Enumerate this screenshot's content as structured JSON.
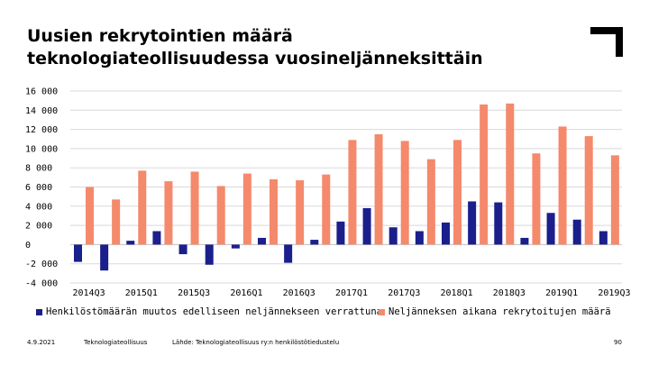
{
  "slide": {
    "title_line1": "Uusien rekrytointien määrä",
    "title_line2": "teknologiateollisuudessa vuosineljänneksittäin"
  },
  "colors": {
    "series1": "#1a1f8c",
    "series2": "#f5896b",
    "grid": "#d9d9d9"
  },
  "footer": {
    "date": "4.9.2021",
    "org": "Teknologiateollisuus",
    "source": "Lähde: Teknologiateollisuus ry:n henkilöstötiedustelu",
    "page": "90"
  },
  "chart_data": {
    "type": "bar",
    "title": "",
    "xlabel": "",
    "ylabel": "",
    "ylim": [
      -4000,
      16000
    ],
    "yticks": [
      -4000,
      -2000,
      0,
      2000,
      4000,
      6000,
      8000,
      10000,
      12000,
      14000,
      16000
    ],
    "ytick_labels": [
      "-4 000",
      "-2 000",
      "0",
      "2 000",
      "4 000",
      "6 000",
      "8 000",
      "10 000",
      "12 000",
      "14 000",
      "16 000"
    ],
    "grid": true,
    "legend": "bottom",
    "categories": [
      "2014Q3",
      "2014Q4",
      "2015Q1",
      "2015Q2",
      "2015Q3",
      "2015Q4",
      "2016Q1",
      "2016Q2",
      "2016Q3",
      "2016Q4",
      "2017Q1",
      "2017Q2",
      "2017Q3",
      "2017Q4",
      "2018Q1",
      "2018Q2",
      "2018Q3",
      "2018Q4",
      "2019Q1",
      "2019Q2",
      "2019Q3"
    ],
    "xtick_labels": [
      "2014Q3",
      "",
      "2015Q1",
      "",
      "2015Q3",
      "",
      "2016Q1",
      "",
      "2016Q3",
      "",
      "2017Q1",
      "",
      "2017Q3",
      "",
      "2018Q1",
      "",
      "2018Q3",
      "",
      "2019Q1",
      "",
      "2019Q3"
    ],
    "series": [
      {
        "name": "Henkilöstömäärän muutos edelliseen neljännekseen verrattuna",
        "values": [
          -1800,
          -2700,
          400,
          1400,
          -1000,
          -2100,
          -400,
          700,
          -1900,
          500,
          2400,
          3800,
          1800,
          1400,
          2300,
          4500,
          4400,
          700,
          3300,
          2600,
          1400
        ]
      },
      {
        "name": "Neljänneksen aikana rekrytoitujen määrä",
        "values": [
          6000,
          4700,
          7700,
          6600,
          7600,
          6100,
          7400,
          6800,
          6700,
          7300,
          10900,
          11500,
          10800,
          8900,
          10900,
          14600,
          14700,
          9500,
          12300,
          11300,
          9300
        ]
      }
    ]
  }
}
